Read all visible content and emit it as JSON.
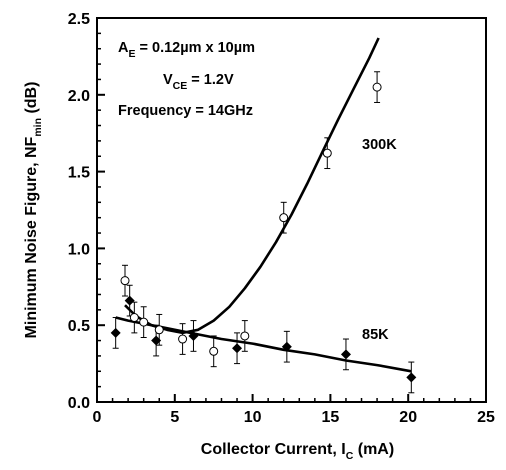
{
  "chart_data": {
    "type": "scatter",
    "xlabel": "Collector Current, I",
    "xlabel_sub": "C",
    "xlabel_unit": " (mA)",
    "ylabel": "Minimum Noise Figure, NF",
    "ylabel_sub": "min",
    "ylabel_unit": " (dB)",
    "xlim": [
      0,
      25
    ],
    "ylim": [
      0.0,
      2.5
    ],
    "x_ticks": [
      "0",
      "5",
      "10",
      "15",
      "20",
      "25"
    ],
    "y_ticks": [
      "0.0",
      "0.5",
      "1.0",
      "1.5",
      "2.0",
      "2.5"
    ],
    "annotations": {
      "area_prefix": "A",
      "area_sub": "E",
      "area_value": " = 0.12µm x 10µm",
      "vce_prefix": "V",
      "vce_sub": "CE",
      "vce_value": " = 1.2V",
      "frequency": "Frequency = 14GHz",
      "label_300k": "300K",
      "label_85k": "85K"
    },
    "series": [
      {
        "name": "300K",
        "marker": "open-circle",
        "points": [
          {
            "x": 1.8,
            "y": 0.79,
            "err": 0.1
          },
          {
            "x": 2.4,
            "y": 0.55,
            "err": 0.1
          },
          {
            "x": 3.0,
            "y": 0.52,
            "err": 0.1
          },
          {
            "x": 4.0,
            "y": 0.47,
            "err": 0.1
          },
          {
            "x": 5.5,
            "y": 0.41,
            "err": 0.1
          },
          {
            "x": 7.5,
            "y": 0.33,
            "err": 0.1
          },
          {
            "x": 9.5,
            "y": 0.43,
            "err": 0.1
          },
          {
            "x": 12.0,
            "y": 1.2,
            "err": 0.1
          },
          {
            "x": 14.8,
            "y": 1.62,
            "err": 0.1
          },
          {
            "x": 18.0,
            "y": 2.05,
            "err": 0.1
          }
        ],
        "fit": [
          {
            "x": 1.8,
            "y": 0.63
          },
          {
            "x": 2.5,
            "y": 0.56
          },
          {
            "x": 3.5,
            "y": 0.5
          },
          {
            "x": 4.5,
            "y": 0.47
          },
          {
            "x": 5.5,
            "y": 0.45
          },
          {
            "x": 6.5,
            "y": 0.47
          },
          {
            "x": 7.5,
            "y": 0.53
          },
          {
            "x": 8.5,
            "y": 0.62
          },
          {
            "x": 9.5,
            "y": 0.74
          },
          {
            "x": 10.5,
            "y": 0.88
          },
          {
            "x": 11.5,
            "y": 1.04
          },
          {
            "x": 12.5,
            "y": 1.22
          },
          {
            "x": 13.5,
            "y": 1.42
          },
          {
            "x": 14.5,
            "y": 1.63
          },
          {
            "x": 15.5,
            "y": 1.84
          },
          {
            "x": 16.5,
            "y": 2.04
          },
          {
            "x": 17.5,
            "y": 2.24
          },
          {
            "x": 18.1,
            "y": 2.37
          }
        ]
      },
      {
        "name": "85K",
        "marker": "filled-diamond",
        "points": [
          {
            "x": 1.2,
            "y": 0.45,
            "err": 0.1
          },
          {
            "x": 2.1,
            "y": 0.66,
            "err": 0.1
          },
          {
            "x": 3.8,
            "y": 0.4,
            "err": 0.1
          },
          {
            "x": 6.2,
            "y": 0.43,
            "err": 0.1
          },
          {
            "x": 9.0,
            "y": 0.35,
            "err": 0.1
          },
          {
            "x": 12.2,
            "y": 0.36,
            "err": 0.1
          },
          {
            "x": 16.0,
            "y": 0.31,
            "err": 0.1
          },
          {
            "x": 20.2,
            "y": 0.16,
            "err": 0.1
          }
        ],
        "fit": [
          {
            "x": 1.2,
            "y": 0.55
          },
          {
            "x": 2,
            "y": 0.53
          },
          {
            "x": 4,
            "y": 0.49
          },
          {
            "x": 6,
            "y": 0.45
          },
          {
            "x": 8,
            "y": 0.41
          },
          {
            "x": 10,
            "y": 0.38
          },
          {
            "x": 12,
            "y": 0.34
          },
          {
            "x": 14,
            "y": 0.31
          },
          {
            "x": 16,
            "y": 0.27
          },
          {
            "x": 18,
            "y": 0.24
          },
          {
            "x": 20.2,
            "y": 0.2
          }
        ]
      }
    ]
  }
}
